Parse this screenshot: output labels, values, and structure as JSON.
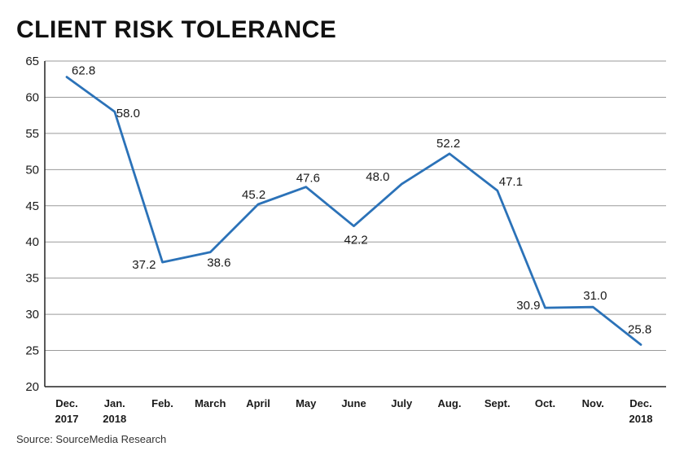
{
  "chart_data": {
    "type": "line",
    "title": "CLIENT RISK TOLERANCE",
    "source": "Source: SourceMedia Research",
    "categories": [
      [
        "Dec.",
        "2017"
      ],
      [
        "Jan.",
        "2018"
      ],
      [
        "Feb."
      ],
      [
        "March"
      ],
      [
        "April"
      ],
      [
        "May"
      ],
      [
        "June"
      ],
      [
        "July"
      ],
      [
        "Aug."
      ],
      [
        "Sept."
      ],
      [
        "Oct."
      ],
      [
        "Nov."
      ],
      [
        "Dec.",
        "2018"
      ]
    ],
    "series": [
      {
        "values": [
          62.8,
          58.0,
          37.2,
          38.6,
          45.2,
          47.6,
          42.2,
          48.0,
          52.2,
          47.1,
          30.9,
          31.0,
          25.8
        ],
        "labels": [
          "62.8",
          "58.0",
          "37.2",
          "38.6",
          "45.2",
          "47.6",
          "42.2",
          "48.0",
          "52.2",
          "47.1",
          "30.9",
          "31.0",
          "25.8"
        ],
        "color": "#2b72b8"
      }
    ],
    "ylim": [
      20,
      65
    ],
    "yticks": [
      20,
      25,
      30,
      35,
      40,
      45,
      50,
      55,
      60,
      65
    ],
    "xlabel": "",
    "ylabel": "",
    "grid": true,
    "legend": "none",
    "colors": {
      "line": "#2b72b8",
      "grid": "#9a9a9a",
      "axis": "#222222"
    }
  }
}
